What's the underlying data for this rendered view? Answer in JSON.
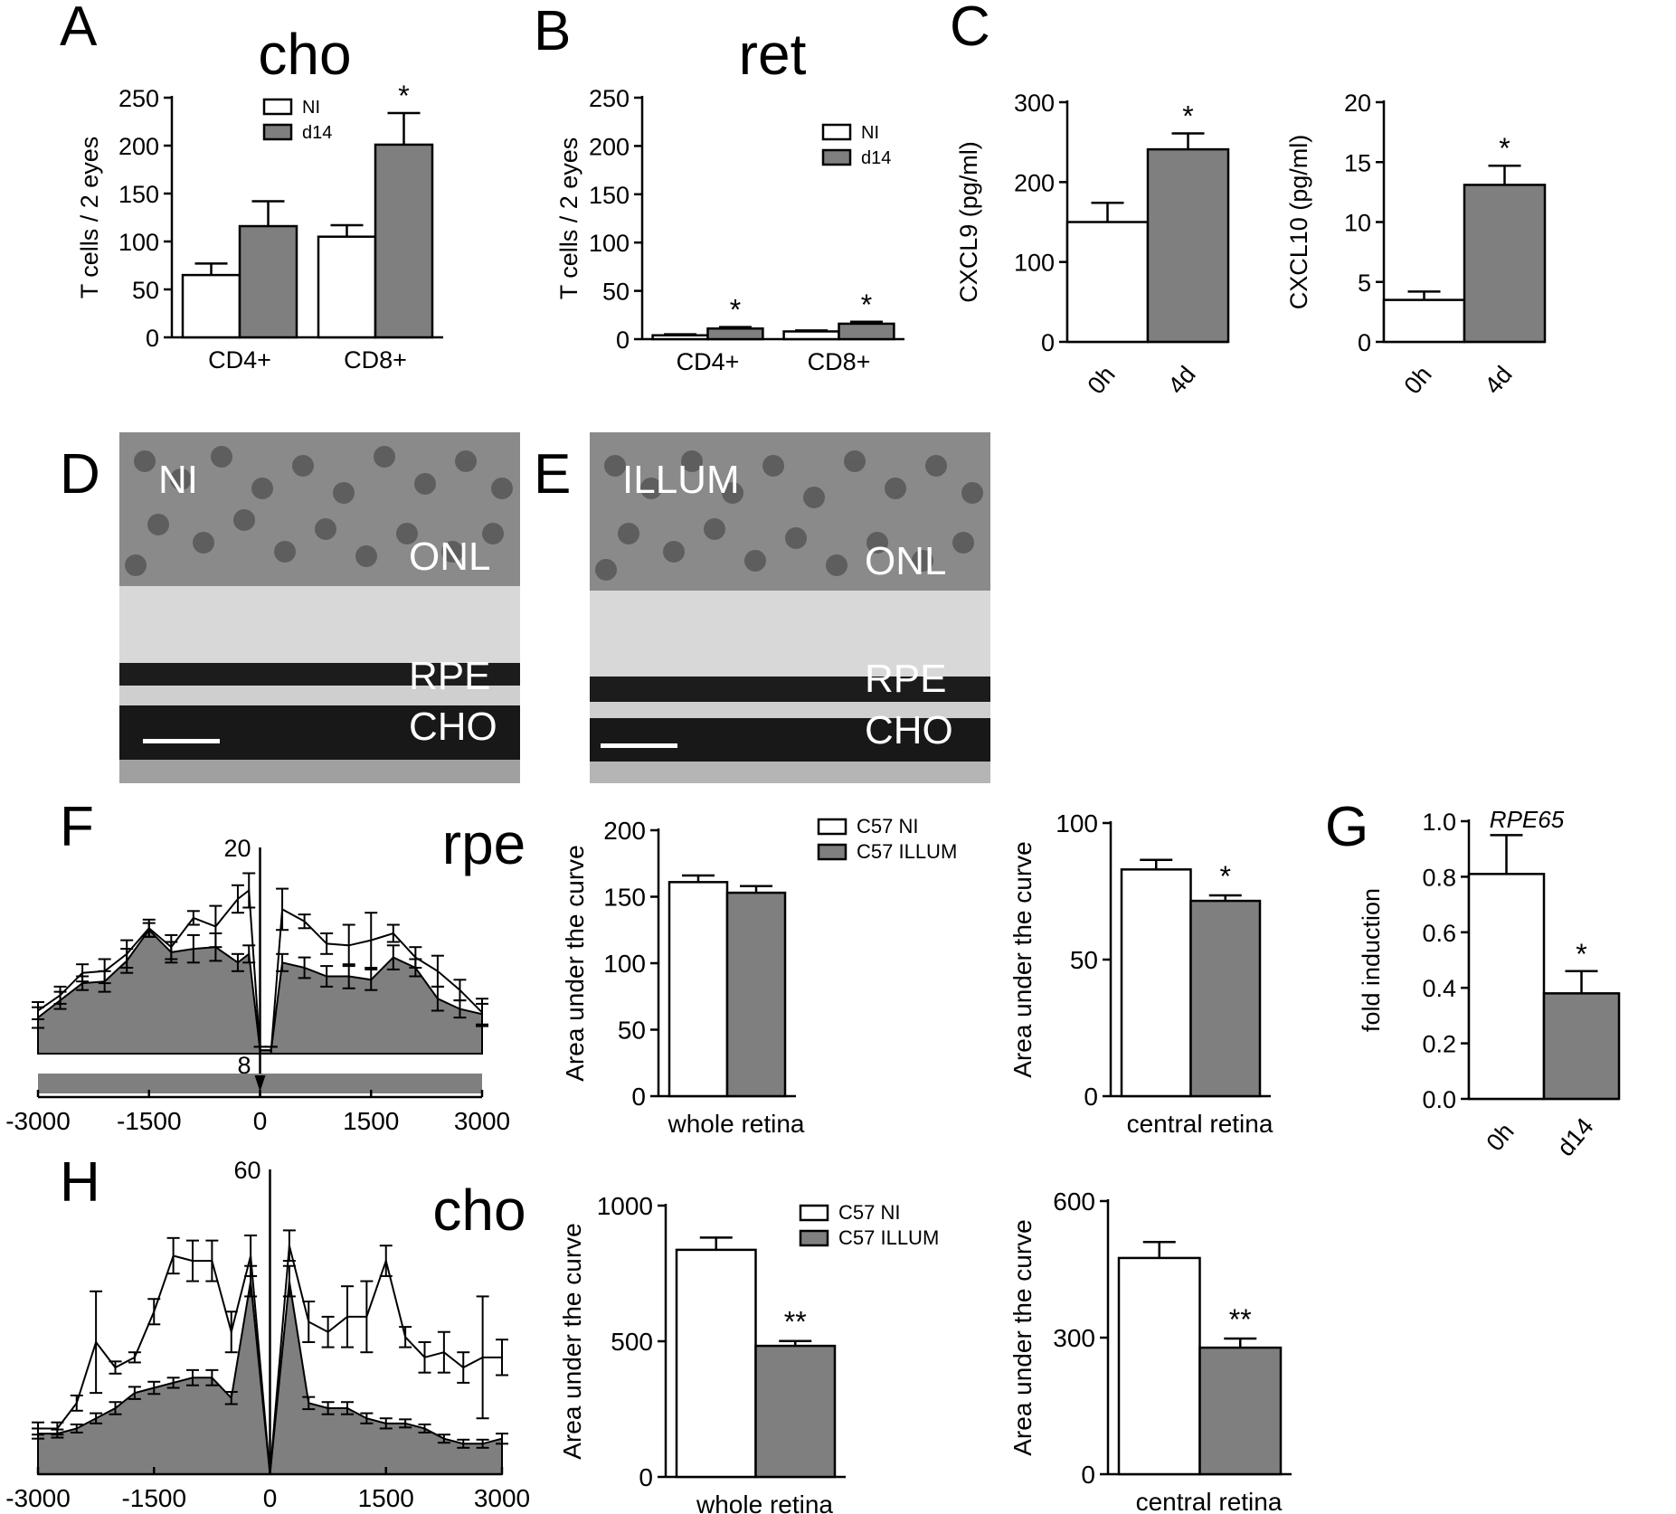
{
  "colors": {
    "bar_ni": "#ffffff",
    "bar_treated": "#7f7f7f",
    "area_fill": "#7f7f7f",
    "axis": "#000000",
    "histo_label": "#ffffff"
  },
  "panels": {
    "A": {
      "letter": "A",
      "title": "cho"
    },
    "B": {
      "letter": "B",
      "title": "ret"
    },
    "C": {
      "letter": "C"
    },
    "D": {
      "letter": "D",
      "condition": "NI",
      "onl": "ONL",
      "rpe": "RPE",
      "cho": "CHO"
    },
    "E": {
      "letter": "E",
      "condition": "ILLUM",
      "onl": "ONL",
      "rpe": "RPE",
      "cho": "CHO"
    },
    "F": {
      "letter": "F",
      "title": "rpe"
    },
    "G": {
      "letter": "G",
      "title": "RPE65"
    },
    "H": {
      "letter": "H",
      "title": "cho"
    }
  },
  "chart_data": [
    {
      "id": "A",
      "type": "bar",
      "title": "cho",
      "ylabel": "T cells / 2 eyes",
      "categories": [
        "CD4+",
        "CD8+"
      ],
      "ylim": [
        0,
        250
      ],
      "yticks": [
        "0",
        "50",
        "100",
        "150",
        "200",
        "250"
      ],
      "series": [
        {
          "name": "NI",
          "values": [
            65,
            105
          ],
          "errors": [
            12,
            12
          ]
        },
        {
          "name": "d14",
          "values": [
            116,
            201
          ],
          "errors": [
            26,
            33
          ]
        }
      ],
      "annotations": [
        {
          "category": 1,
          "series": 1,
          "text": "*"
        }
      ]
    },
    {
      "id": "B",
      "type": "bar",
      "title": "ret",
      "ylabel": "T cells / 2 eyes",
      "categories": [
        "CD4+",
        "CD8+"
      ],
      "ylim": [
        0,
        250
      ],
      "yticks": [
        "0",
        "50",
        "100",
        "150",
        "200",
        "250"
      ],
      "series": [
        {
          "name": "NI",
          "values": [
            4,
            8
          ],
          "errors": [
            1,
            1
          ]
        },
        {
          "name": "d14",
          "values": [
            11,
            16
          ],
          "errors": [
            1.5,
            2
          ]
        }
      ],
      "annotations": [
        {
          "category": 0,
          "series": 1,
          "text": "*"
        },
        {
          "category": 1,
          "series": 1,
          "text": "*"
        }
      ]
    },
    {
      "id": "C1",
      "type": "bar",
      "ylabel": "CXCL9 (pg/ml)",
      "categories": [
        "0h",
        "4d"
      ],
      "ylim": [
        0,
        300
      ],
      "yticks": [
        "0",
        "100",
        "200",
        "300"
      ],
      "values": [
        150,
        241
      ],
      "errors": [
        24,
        20
      ],
      "annotations": [
        {
          "category": 1,
          "text": "*"
        }
      ]
    },
    {
      "id": "C2",
      "type": "bar",
      "ylabel": "CXCL10 (pg/ml)",
      "categories": [
        "0h",
        "4d"
      ],
      "ylim": [
        0,
        20
      ],
      "yticks": [
        "0",
        "5",
        "10",
        "15",
        "20"
      ],
      "values": [
        3.5,
        13.1
      ],
      "errors": [
        0.7,
        1.6
      ],
      "annotations": [
        {
          "category": 1,
          "text": "*"
        }
      ]
    },
    {
      "id": "F1",
      "type": "area",
      "title": "rpe",
      "xlim": [
        -3000,
        3000
      ],
      "ylim": [
        8,
        20
      ],
      "xticks": [
        "-3000",
        "-1500",
        "0",
        "1500",
        "3000"
      ],
      "ytick_labels": {
        "top": "20",
        "bottom": "8"
      },
      "x": [
        -3000,
        -2700,
        -2400,
        -2100,
        -1800,
        -1500,
        -1200,
        -900,
        -600,
        -300,
        -150,
        0,
        150,
        300,
        600,
        900,
        1200,
        1500,
        1800,
        2100,
        2400,
        2700,
        3000
      ],
      "series": [
        {
          "name": "C57 NI",
          "values": [
            10.5,
            11.4,
            12.7,
            12.8,
            13.8,
            15.3,
            14.2,
            15.9,
            15.4,
            17.0,
            17.5,
            8.2,
            8.2,
            16.4,
            15.7,
            14.4,
            14.3,
            14.6,
            15.0,
            13.6,
            12.8,
            11.7,
            10.4
          ],
          "errors": [
            0.5,
            0.5,
            0.5,
            0.7,
            0.8,
            0.5,
            0.7,
            0.4,
            1.2,
            0.8,
            1.0,
            0.2,
            0.2,
            1.2,
            0.4,
            0.6,
            1.2,
            1.6,
            0.5,
            0.6,
            0.9,
            0.6,
            0.8
          ]
        },
        {
          "name": "C57 ILLUM",
          "values": [
            10.1,
            11.1,
            12.1,
            12.2,
            13.4,
            15.2,
            13.9,
            14.1,
            14.2,
            13.3,
            13.8,
            8.2,
            8.2,
            13.3,
            13.0,
            12.5,
            12.5,
            12.3,
            13.6,
            13.0,
            11.2,
            10.6,
            10.3
          ],
          "errors": [
            0.6,
            0.5,
            0.4,
            0.6,
            0.7,
            0.4,
            0.6,
            0.8,
            0.8,
            0.5,
            0.5,
            0.2,
            0.2,
            0.5,
            0.6,
            0.6,
            0.7,
            0.6,
            0.7,
            0.5,
            0.7,
            0.5,
            0.6
          ]
        }
      ]
    },
    {
      "id": "F2",
      "type": "bar",
      "ylabel": "Area under the curve",
      "xlabel": "whole retina",
      "ylim": [
        0,
        200
      ],
      "yticks": [
        "0",
        "50",
        "100",
        "150",
        "200"
      ],
      "series": [
        {
          "name": "C57 NI",
          "values": [
            161
          ],
          "errors": [
            5
          ]
        },
        {
          "name": "C57 ILLUM",
          "values": [
            153
          ],
          "errors": [
            5
          ]
        }
      ]
    },
    {
      "id": "F3",
      "type": "bar",
      "ylabel": "Area under the curve",
      "xlabel": "central retina",
      "ylim": [
        0,
        100
      ],
      "yticks": [
        "0",
        "50",
        "100"
      ],
      "series": [
        {
          "name": "C57 NI",
          "values": [
            83
          ],
          "errors": [
            3.5
          ]
        },
        {
          "name": "C57 ILLUM",
          "values": [
            71.5
          ],
          "errors": [
            2
          ]
        }
      ],
      "annotations": [
        {
          "series": 1,
          "text": "*"
        }
      ]
    },
    {
      "id": "G",
      "type": "bar",
      "title": "RPE65",
      "ylabel": "fold induction",
      "categories": [
        "0h",
        "d14"
      ],
      "ylim": [
        0,
        1.0
      ],
      "yticks": [
        "0.0",
        "0.2",
        "0.4",
        "0.6",
        "0.8",
        "1.0"
      ],
      "values": [
        0.81,
        0.38
      ],
      "errors": [
        0.14,
        0.08
      ],
      "annotations": [
        {
          "category": 1,
          "text": "*"
        }
      ]
    },
    {
      "id": "H1",
      "type": "area",
      "title": "cho",
      "xlim": [
        -3000,
        3000
      ],
      "ylim": [
        0,
        60
      ],
      "xticks": [
        "-3000",
        "-1500",
        "0",
        "1500",
        "3000"
      ],
      "ytick_labels": {
        "top": "60"
      },
      "x": [
        -3000,
        -2750,
        -2500,
        -2250,
        -2000,
        -1750,
        -1500,
        -1250,
        -1000,
        -750,
        -500,
        -250,
        0,
        250,
        500,
        750,
        1000,
        1250,
        1500,
        1750,
        2000,
        2250,
        2500,
        2750,
        3000
      ],
      "series": [
        {
          "name": "C57 NI",
          "values": [
            9,
            9,
            14,
            26,
            21,
            23,
            32,
            43,
            42,
            42,
            28,
            43,
            0,
            45,
            30,
            28,
            31,
            31,
            42,
            27,
            23,
            24,
            21,
            23,
            23
          ],
          "errors": [
            1.2,
            1.2,
            1.5,
            10,
            1.2,
            1,
            2.5,
            3.5,
            4,
            4,
            4,
            4,
            0,
            3,
            4,
            3,
            6,
            7,
            3,
            2,
            3,
            4,
            3,
            12,
            3.5
          ]
        },
        {
          "name": "C57 ILLUM",
          "values": [
            8,
            8,
            9,
            11,
            13,
            16,
            17,
            18,
            19,
            19,
            15,
            38,
            0,
            38,
            14,
            13,
            13,
            11,
            10,
            10,
            9,
            7,
            6,
            6,
            7
          ],
          "errors": [
            1,
            0.8,
            0.8,
            1,
            1.2,
            1.2,
            1.2,
            1,
            1.5,
            1.5,
            1.2,
            3,
            0,
            3,
            1.2,
            1.2,
            1.2,
            1,
            1,
            0.8,
            0.8,
            0.8,
            0.8,
            0.8,
            1
          ]
        }
      ]
    },
    {
      "id": "H2",
      "type": "bar",
      "ylabel": "Area under the curve",
      "xlabel": "whole retina",
      "ylim": [
        0,
        1000
      ],
      "yticks": [
        "0",
        "500",
        "1000"
      ],
      "series": [
        {
          "name": "C57 NI",
          "values": [
            837
          ],
          "errors": [
            45
          ]
        },
        {
          "name": "C57 ILLUM",
          "values": [
            483
          ],
          "errors": [
            18
          ]
        }
      ],
      "annotations": [
        {
          "series": 1,
          "text": "**"
        }
      ]
    },
    {
      "id": "H3",
      "type": "bar",
      "ylabel": "Area under the curve",
      "xlabel": "central retina",
      "ylim": [
        0,
        600
      ],
      "yticks": [
        "0",
        "300",
        "600"
      ],
      "series": [
        {
          "name": "C57 NI",
          "values": [
            475
          ],
          "errors": [
            35
          ]
        },
        {
          "name": "C57 ILLUM",
          "values": [
            278
          ],
          "errors": [
            20
          ]
        }
      ],
      "annotations": [
        {
          "series": 1,
          "text": "**"
        }
      ]
    }
  ]
}
